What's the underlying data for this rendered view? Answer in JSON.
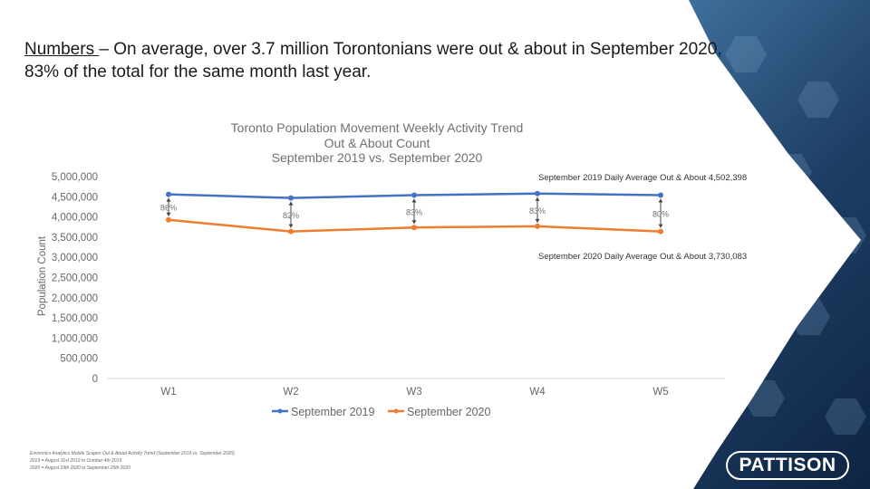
{
  "headline": {
    "lead": "Numbers ",
    "body": "– On average, over 3.7 million Torontonians were out & about in September 2020, 83% of the total for the same month last year."
  },
  "colors": {
    "series_2019": "#4472c4",
    "series_2020": "#ed7d31",
    "grid": "#d9d9d9"
  },
  "chart_data": {
    "type": "line",
    "title_lines": [
      "Toronto Population Movement Weekly Activity Trend",
      "Out & About Count",
      "September 2019 vs. September 2020"
    ],
    "categories": [
      "W1",
      "W2",
      "W3",
      "W4",
      "W5"
    ],
    "series": [
      {
        "name": "September 2019",
        "values": [
          4560000,
          4470000,
          4540000,
          4580000,
          4540000
        ]
      },
      {
        "name": "September 2020",
        "values": [
          3930000,
          3640000,
          3740000,
          3770000,
          3640000
        ]
      }
    ],
    "ratio_labels": [
      "86%",
      "82%",
      "83%",
      "83%",
      "80%"
    ],
    "ylabel": "Population Count",
    "ylim": [
      0,
      5000000
    ],
    "yticks": [
      0,
      500000,
      1000000,
      1500000,
      2000000,
      2500000,
      3000000,
      3500000,
      4000000,
      4500000,
      5000000
    ],
    "ytick_labels": [
      "0",
      "500,000",
      "1,000,000",
      "1,500,000",
      "2,000,000",
      "2,500,000",
      "3,000,000",
      "3,500,000",
      "4,000,000",
      "4,500,000",
      "5,000,000"
    ],
    "annotations": [
      "September 2019 Daily Average Out & About 4,502,398",
      "September 2020 Daily Average Out & About 3,730,083"
    ]
  },
  "source_lines": [
    "Environics Analytics Mobile Scapes Out & About Activity Trend (September 2019 vs. September 2020)",
    "2019 = August 31st 2019 to October 4th 2019",
    "2020 = August 29th 2020 to September 25th 2020"
  ],
  "logo": {
    "text": "PATTISON"
  }
}
